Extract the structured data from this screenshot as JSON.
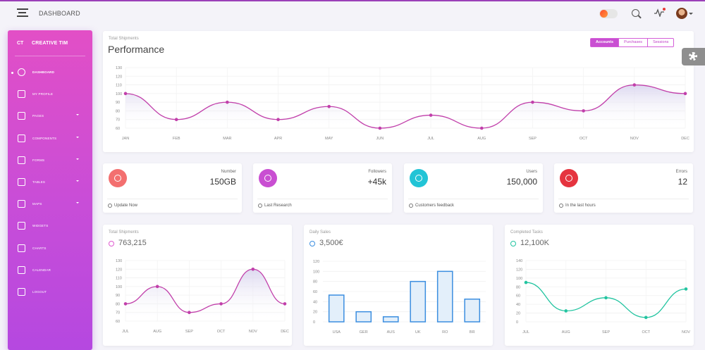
{
  "topbar": {
    "title": "DASHBOARD"
  },
  "sidebar": {
    "brand_short": "CT",
    "brand_name": "CREATIVE TIM",
    "items": [
      {
        "label": "DASHBOARD",
        "icon": "dashboard-icon",
        "active": true,
        "caret": false
      },
      {
        "label": "MY PROFILE",
        "icon": "user-icon",
        "caret": false
      },
      {
        "label": "PAGES",
        "icon": "pages-icon",
        "caret": true
      },
      {
        "label": "COMPONENTS",
        "icon": "components-icon",
        "caret": true
      },
      {
        "label": "FORMS",
        "icon": "forms-icon",
        "caret": true
      },
      {
        "label": "TABLES",
        "icon": "tables-icon",
        "caret": true
      },
      {
        "label": "MAPS",
        "icon": "map-pin-icon",
        "caret": true
      },
      {
        "label": "WIDGETS",
        "icon": "widgets-icon",
        "caret": false
      },
      {
        "label": "CHARTS",
        "icon": "charts-icon",
        "caret": false
      },
      {
        "label": "CALENDAR",
        "icon": "calendar-icon",
        "caret": false
      },
      {
        "label": "LOGOUT",
        "icon": "logout-icon",
        "caret": false
      }
    ]
  },
  "performance": {
    "subtitle": "Total Shipments",
    "title": "Performance",
    "tabs": [
      "Accounts",
      "Purchases",
      "Sessions"
    ],
    "active_tab": "Accounts"
  },
  "stats": [
    {
      "label": "Number",
      "value": "150GB",
      "footer": "Update Now",
      "color": "#f36f6f",
      "icon": "chat-icon",
      "foot_icon": "refresh-icon"
    },
    {
      "label": "Followers",
      "value": "+45k",
      "footer": "Last Research",
      "color": "#c94fd2",
      "icon": "star-icon",
      "foot_icon": "bar-chart-icon"
    },
    {
      "label": "Users",
      "value": "150,000",
      "footer": "Customers feedback",
      "color": "#22c4d6",
      "icon": "user-icon",
      "foot_icon": "trophy-icon"
    },
    {
      "label": "Errors",
      "value": "12",
      "footer": "In the last hours",
      "color": "#e5343f",
      "icon": "molecule-icon",
      "foot_icon": "clock-icon"
    }
  ],
  "minis": [
    {
      "subtitle": "Total Shipments",
      "value": "763,215",
      "icon_color": "#e05ad0",
      "icon": "bell-icon"
    },
    {
      "subtitle": "Daily Sales",
      "value": "3,500€",
      "icon_color": "#3b8ee0",
      "icon": "delivery-icon"
    },
    {
      "subtitle": "Completed Tasks",
      "value": "12,100K",
      "icon_color": "#22c4a0",
      "icon": "send-icon"
    }
  ],
  "chart_data": [
    {
      "type": "line",
      "categories": [
        "JAN",
        "FEB",
        "MAR",
        "APR",
        "MAY",
        "JUN",
        "JUL",
        "AUG",
        "SEP",
        "OCT",
        "NOV",
        "DEC"
      ],
      "values": [
        100,
        70,
        90,
        70,
        85,
        60,
        75,
        60,
        90,
        80,
        110,
        100
      ],
      "yticks": [
        60,
        70,
        80,
        90,
        100,
        110,
        120,
        130
      ],
      "ylim": [
        60,
        130
      ],
      "color": "#c13faa"
    },
    {
      "type": "line",
      "categories": [
        "JUL",
        "AUG",
        "SEP",
        "OCT",
        "NOV",
        "DEC"
      ],
      "values": [
        80,
        100,
        70,
        80,
        120,
        80
      ],
      "yticks": [
        60,
        70,
        80,
        90,
        100,
        110,
        120,
        130
      ],
      "ylim": [
        60,
        130
      ],
      "color": "#c13faa"
    },
    {
      "type": "bar",
      "categories": [
        "USA",
        "GER",
        "AUS",
        "UK",
        "RO",
        "BR"
      ],
      "values": [
        53,
        20,
        10,
        80,
        100,
        45
      ],
      "yticks": [
        0,
        20,
        40,
        60,
        80,
        100,
        120
      ],
      "ylim": [
        0,
        120
      ],
      "color": "#3b8ee0"
    },
    {
      "type": "line",
      "categories": [
        "JUL",
        "AUG",
        "SEP",
        "OCT",
        "NOV"
      ],
      "values": [
        90,
        25,
        55,
        10,
        75
      ],
      "yticks": [
        0,
        20,
        40,
        60,
        80,
        100,
        120,
        140
      ],
      "ylim": [
        0,
        140
      ],
      "color": "#22c4a0"
    }
  ]
}
